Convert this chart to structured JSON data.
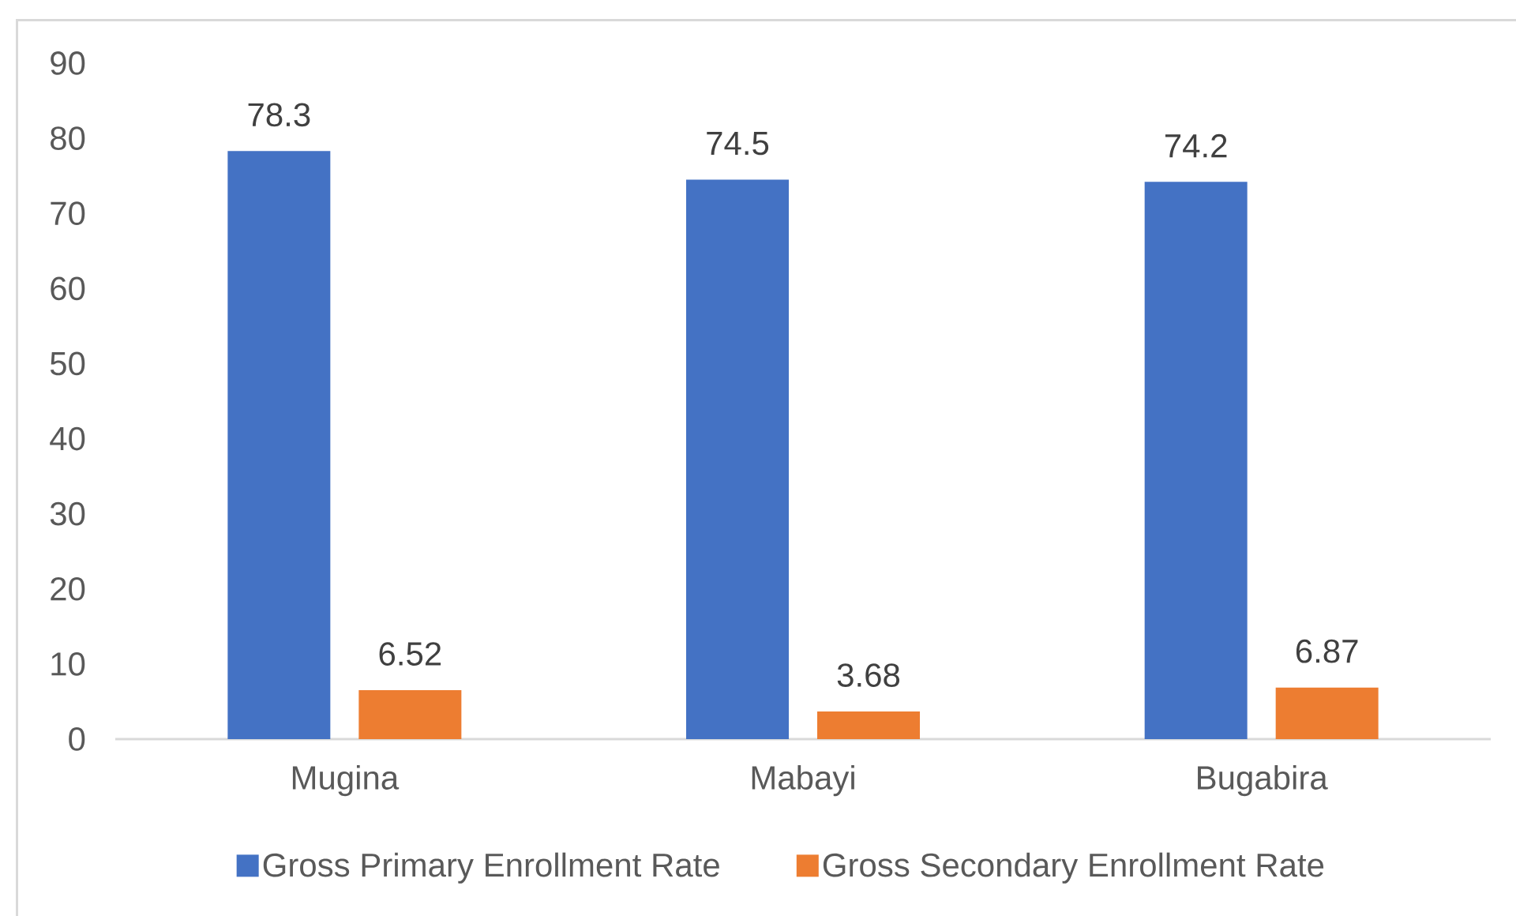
{
  "chart_data": {
    "type": "bar",
    "categories": [
      "Mugina",
      "Mabayi",
      "Bugabira"
    ],
    "series": [
      {
        "name": "Gross Primary Enrollment Rate",
        "color": "#4472c4",
        "values": [
          78.3,
          74.5,
          74.2
        ]
      },
      {
        "name": "Gross Secondary Enrollment Rate",
        "color": "#ed7d31",
        "values": [
          6.52,
          3.68,
          6.87
        ]
      }
    ],
    "ylim": [
      0,
      90
    ],
    "yticks": [
      0,
      10,
      20,
      30,
      40,
      50,
      60,
      70,
      80,
      90
    ],
    "data_labels": true,
    "legend": "bottom"
  }
}
